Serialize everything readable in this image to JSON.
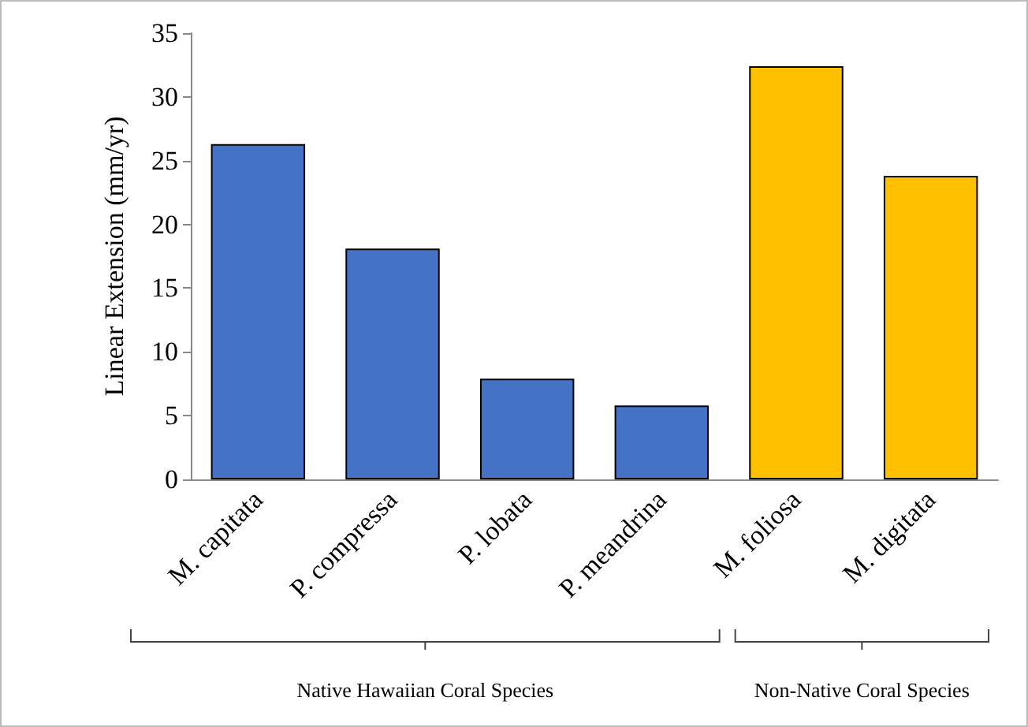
{
  "chart_data": {
    "type": "bar",
    "ylabel": "Linear Extension (mm/yr)",
    "categories": [
      "M. capitata",
      "P. compressa",
      "P. lobata",
      "P. meandrina",
      "M. foliosa",
      "M. digitata"
    ],
    "values": [
      26.3,
      18.1,
      7.9,
      5.8,
      32.4,
      23.8
    ],
    "colors": [
      "#4472c4",
      "#4472c4",
      "#4472c4",
      "#4472c4",
      "#ffc000",
      "#ffc000"
    ],
    "ylim": [
      0,
      35
    ],
    "yticks": [
      0,
      5,
      10,
      15,
      20,
      25,
      30,
      35
    ],
    "grid": false,
    "annotations": [
      "Native Hawaiian Coral Species",
      "Non-Native Coral Species"
    ]
  }
}
